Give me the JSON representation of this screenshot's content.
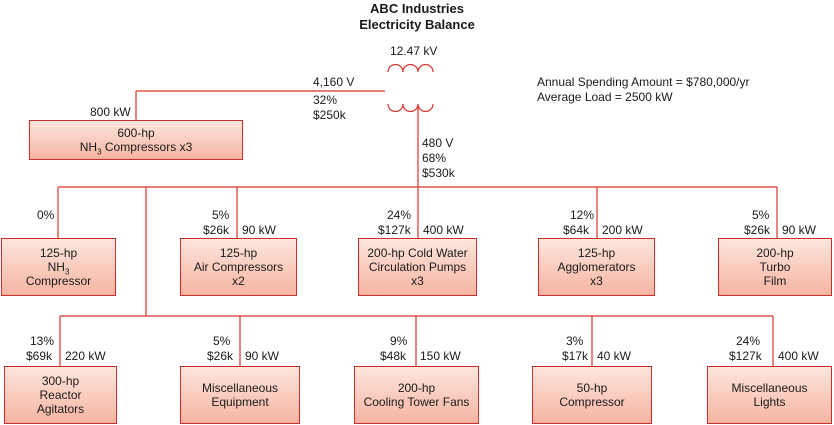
{
  "title": [
    "ABC Industries",
    "Electricity Balance"
  ],
  "supply": {
    "voltage": "12.47 kV"
  },
  "summary": {
    "annual_spending": "Annual Spending Amount = $780,000/yr",
    "average_load": "Average Load = 2500 kW"
  },
  "feeder_4160": {
    "voltage": "4,160 V",
    "percent": "32%",
    "cost": "$250k",
    "load": "800 kW"
  },
  "feeder_480": {
    "voltage": "480 V",
    "percent": "68%",
    "cost": "$530k"
  },
  "nh3_main": {
    "line1": "600-hp",
    "line2_pre": "NH",
    "line2_sub": "3",
    "line2_post": " Compressors x3"
  },
  "row1": [
    {
      "percent": "0%",
      "cost": "",
      "load": "",
      "line1": "125-hp",
      "line2_pre": "NH",
      "line2_sub": "3",
      "line2_post": "",
      "line3": "Compressor"
    },
    {
      "percent": "5%",
      "cost": "$26k",
      "load": "90 kW",
      "line1": "125-hp",
      "line2": "Air Compressors",
      "line3": "x2"
    },
    {
      "percent": "24%",
      "cost": "$127k",
      "load": "400 kW",
      "line1": "200-hp Cold Water",
      "line2": "Circulation Pumps",
      "line3": "x3"
    },
    {
      "percent": "12%",
      "cost": "$64k",
      "load": "200 kW",
      "line1": "125-hp",
      "line2": "Agglomerators",
      "line3": "x3"
    },
    {
      "percent": "5%",
      "cost": "$26k",
      "load": "90 kW",
      "line1": "200-hp",
      "line2": "Turbo",
      "line3": "Film"
    }
  ],
  "row2": [
    {
      "percent": "13%",
      "cost": "$69k",
      "load": "220 kW",
      "line1": "300-hp",
      "line2": "Reactor",
      "line3": "Agitators"
    },
    {
      "percent": "5%",
      "cost": "$26k",
      "load": "90 kW",
      "line1": "Miscellaneous",
      "line2": "Equipment"
    },
    {
      "percent": "9%",
      "cost": "$48k",
      "load": "150 kW",
      "line1": "200-hp",
      "line2": "Cooling Tower Fans"
    },
    {
      "percent": "3%",
      "cost": "$17k",
      "load": "40 kW",
      "line1": "50-hp",
      "line2": "Compressor"
    },
    {
      "percent": "24%",
      "cost": "$127k",
      "load": "400 kW",
      "line1": "Miscellaneous",
      "line2": "Lights"
    }
  ]
}
